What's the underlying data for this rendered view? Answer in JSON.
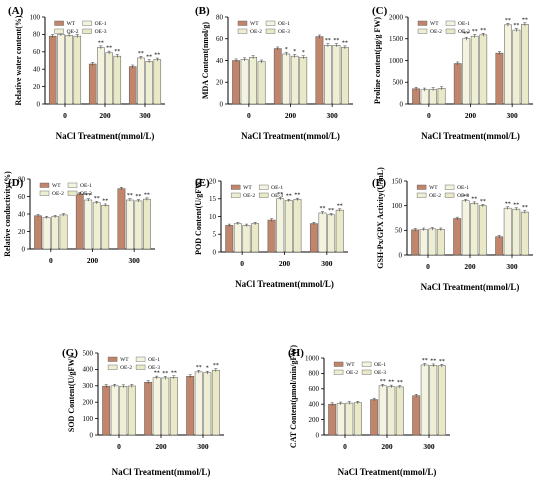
{
  "chart_data": [
    {
      "type": "bar",
      "panel": "(A)",
      "ylabel": "Relative water content(%)",
      "xlabel": "NaCl Treatment(mmol/L)",
      "categories": [
        "0",
        "200",
        "300"
      ],
      "ylim": [
        0,
        100
      ],
      "yticks": [
        0,
        20,
        40,
        60,
        80,
        100
      ],
      "legend_position": "top",
      "series": [
        {
          "name": "WT",
          "values": [
            78,
            46,
            43
          ]
        },
        {
          "name": "OE-1",
          "values": [
            80,
            65,
            53
          ]
        },
        {
          "name": "OE-2",
          "values": [
            79,
            59,
            49
          ]
        },
        {
          "name": "OE-3",
          "values": [
            78,
            55,
            51
          ]
        }
      ],
      "annotations": [
        [
          "",
          "",
          "",
          ""
        ],
        [
          "",
          "**",
          "**",
          "**"
        ],
        [
          "",
          "**",
          "**",
          "**"
        ]
      ]
    },
    {
      "type": "bar",
      "panel": "(B)",
      "ylabel": "MDA Content(nmol/g)",
      "xlabel": "NaCl Treatment(mmol/L)",
      "categories": [
        "0",
        "200",
        "300"
      ],
      "ylim": [
        0,
        80
      ],
      "yticks": [
        0,
        20,
        40,
        60,
        80
      ],
      "legend_position": "top",
      "series": [
        {
          "name": "WT",
          "values": [
            40,
            51,
            62
          ]
        },
        {
          "name": "OE-1",
          "values": [
            41,
            46,
            54
          ]
        },
        {
          "name": "OE-2",
          "values": [
            43,
            44,
            54
          ]
        },
        {
          "name": "OE-3",
          "values": [
            39,
            43,
            52
          ]
        }
      ],
      "annotations": [
        [
          "",
          "",
          "",
          ""
        ],
        [
          "",
          "*",
          "*",
          "*"
        ],
        [
          "",
          "**",
          "**",
          "**"
        ]
      ]
    },
    {
      "type": "bar",
      "panel": "(C)",
      "ylabel": "Proline content(μg/g FW)",
      "xlabel": "NaCl Treatment(mmol/L)",
      "categories": [
        "0",
        "200",
        "300"
      ],
      "ylim": [
        0,
        2000
      ],
      "yticks": [
        0,
        500,
        1000,
        1500,
        2000
      ],
      "legend_position": "top",
      "series": [
        {
          "name": "WT",
          "values": [
            350,
            930,
            1170
          ]
        },
        {
          "name": "OE-1",
          "values": [
            330,
            1500,
            1820
          ]
        },
        {
          "name": "OE-2",
          "values": [
            340,
            1560,
            1700
          ]
        },
        {
          "name": "OE-3",
          "values": [
            360,
            1590,
            1830
          ]
        }
      ],
      "annotations": [
        [
          "",
          "",
          "",
          ""
        ],
        [
          "",
          "**",
          "**",
          "**"
        ],
        [
          "",
          "**",
          "**",
          "**"
        ]
      ]
    },
    {
      "type": "bar",
      "panel": "(D)",
      "ylabel": "Relative conductivity(%)",
      "xlabel": "",
      "categories": [
        "0",
        "200",
        "300"
      ],
      "ylim": [
        0,
        80
      ],
      "yticks": [
        0,
        20,
        40,
        60,
        80
      ],
      "legend_position": "top",
      "series": [
        {
          "name": "WT",
          "values": [
            38,
            63,
            69
          ]
        },
        {
          "name": "OE-1",
          "values": [
            36,
            56,
            56
          ]
        },
        {
          "name": "OE-2",
          "values": [
            37,
            53,
            55
          ]
        },
        {
          "name": "OE-3",
          "values": [
            39,
            50,
            57
          ]
        }
      ],
      "annotations": [
        [
          "",
          "",
          "",
          ""
        ],
        [
          "",
          "**",
          "**",
          "**"
        ],
        [
          "",
          "**",
          "**",
          "**"
        ]
      ]
    },
    {
      "type": "bar",
      "panel": "(E)",
      "ylabel": "POD Content(U/gFW)",
      "xlabel": "NaCl Treatment(mmol/L)",
      "categories": [
        "0",
        "200",
        "300"
      ],
      "ylim": [
        0,
        20
      ],
      "yticks": [
        0,
        5,
        10,
        15,
        20
      ],
      "legend_position": "top",
      "series": [
        {
          "name": "WT",
          "values": [
            7.5,
            9,
            8
          ]
        },
        {
          "name": "OE-1",
          "values": [
            8,
            15,
            11
          ]
        },
        {
          "name": "OE-2",
          "values": [
            7.5,
            14.5,
            10.5
          ]
        },
        {
          "name": "OE-3",
          "values": [
            8,
            14.8,
            11.8
          ]
        }
      ],
      "annotations": [
        [
          "",
          "",
          "",
          ""
        ],
        [
          "",
          "**",
          "**",
          "**"
        ],
        [
          "",
          "**",
          "**",
          "**"
        ]
      ]
    },
    {
      "type": "bar",
      "panel": "(F)",
      "ylabel": "GSH-Px/GPX Activity(U/mL)",
      "xlabel": "NaCl Treatment(mmol/L)",
      "categories": [
        "0",
        "200",
        "300"
      ],
      "ylim": [
        0,
        150
      ],
      "yticks": [
        0,
        50,
        100,
        150
      ],
      "legend_position": "top",
      "series": [
        {
          "name": "WT",
          "values": [
            51,
            74,
            37
          ]
        },
        {
          "name": "OE-1",
          "values": [
            52,
            110,
            95
          ]
        },
        {
          "name": "OE-2",
          "values": [
            53,
            105,
            93
          ]
        },
        {
          "name": "OE-3",
          "values": [
            52,
            100,
            87
          ]
        }
      ],
      "annotations": [
        [
          "",
          "",
          "",
          ""
        ],
        [
          "",
          "**",
          "**",
          "**"
        ],
        [
          "",
          "**",
          "**",
          "**"
        ]
      ]
    },
    {
      "type": "bar",
      "panel": "(G)",
      "ylabel": "SOD Content(U/gFW)",
      "xlabel": "NaCl Treatment(mmol/L)",
      "categories": [
        "0",
        "200",
        "300"
      ],
      "ylim": [
        0,
        500
      ],
      "yticks": [
        0,
        100,
        200,
        300,
        400,
        500
      ],
      "legend_position": "top",
      "series": [
        {
          "name": "WT",
          "values": [
            298,
            322,
            358
          ]
        },
        {
          "name": "OE-1",
          "values": [
            300,
            350,
            385
          ]
        },
        {
          "name": "OE-2",
          "values": [
            297,
            348,
            380
          ]
        },
        {
          "name": "OE-3",
          "values": [
            299,
            352,
            395
          ]
        }
      ],
      "annotations": [
        [
          "",
          "",
          "",
          ""
        ],
        [
          "",
          "**",
          "**",
          "**"
        ],
        [
          "",
          "**",
          "*",
          "**"
        ]
      ]
    },
    {
      "type": "bar",
      "panel": "(H)",
      "ylabel": "CAT Content(μmol/min/gFW)",
      "xlabel": "NaCl Treatment(mmol/L)",
      "categories": [
        "0",
        "200",
        "300"
      ],
      "ylim": [
        0,
        1000
      ],
      "yticks": [
        0,
        200,
        400,
        600,
        800,
        1000
      ],
      "legend_position": "top",
      "series": [
        {
          "name": "WT",
          "values": [
            400,
            460,
            510
          ]
        },
        {
          "name": "OE-1",
          "values": [
            410,
            640,
            910
          ]
        },
        {
          "name": "OE-2",
          "values": [
            415,
            630,
            905
          ]
        },
        {
          "name": "OE-3",
          "values": [
            420,
            625,
            900
          ]
        }
      ],
      "annotations": [
        [
          "",
          "",
          "",
          ""
        ],
        [
          "",
          "**",
          "**",
          "**"
        ],
        [
          "",
          "**",
          "**",
          "**"
        ]
      ]
    }
  ],
  "colors": {
    "WT": "#c0856b",
    "OE-1": "#f3f3df",
    "OE-2": "#eeeed2",
    "OE-3": "#e9e9c7",
    "bar_edge": "#555555",
    "axis": "#000000"
  }
}
